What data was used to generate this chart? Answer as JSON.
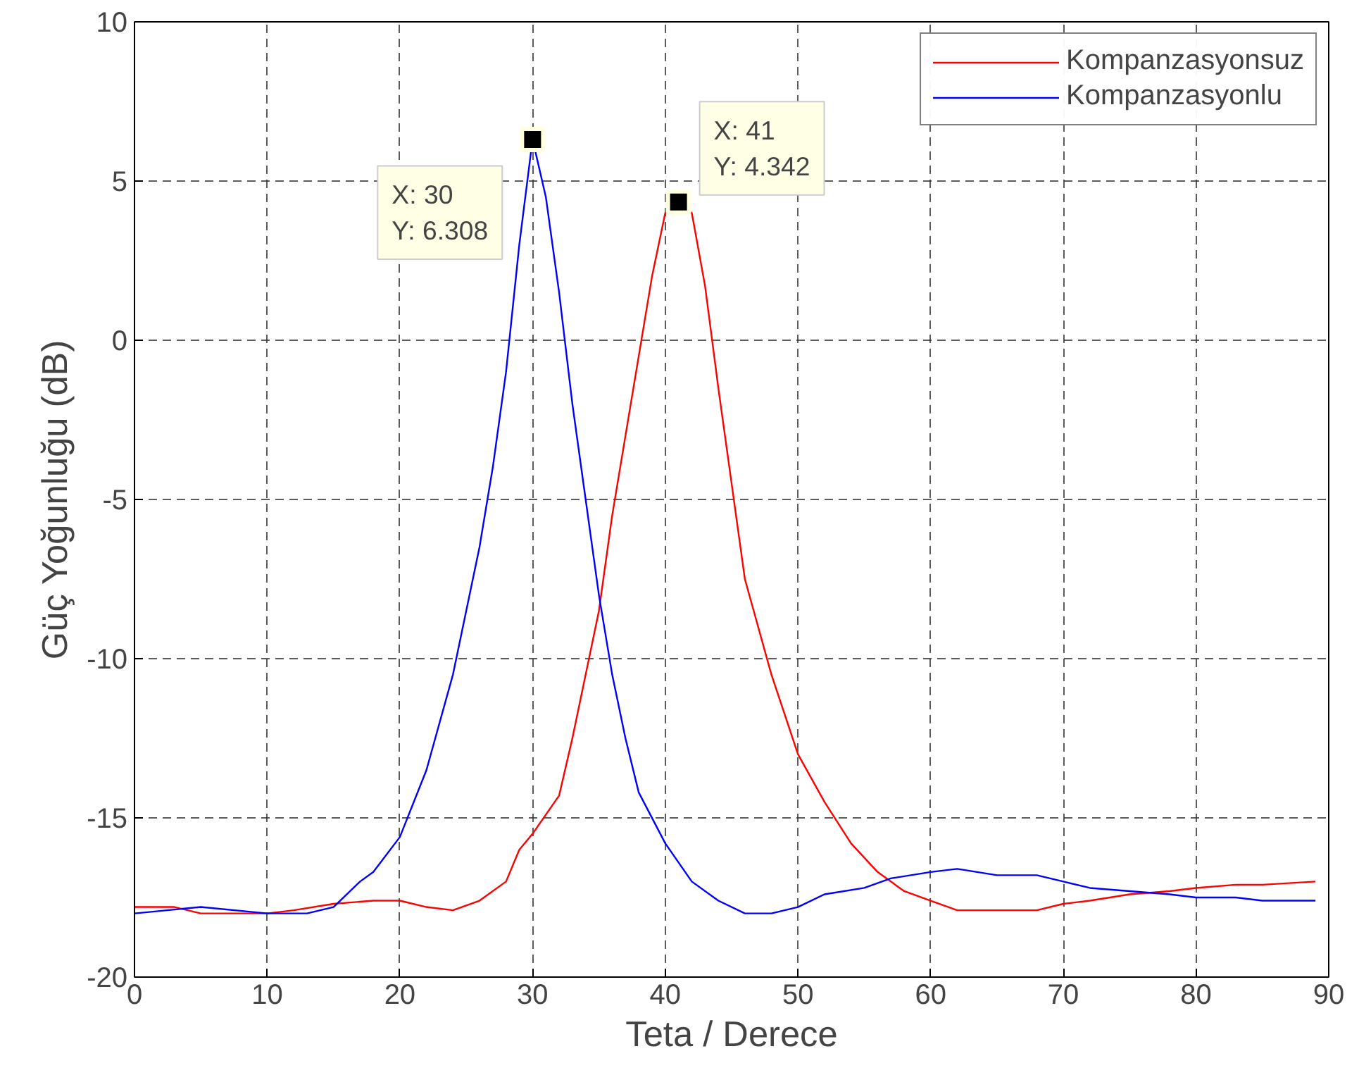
{
  "chart_data": {
    "type": "line",
    "xlabel": "Teta / Derece",
    "ylabel": "Güç Yoğunluğu (dB)",
    "xlim": [
      0,
      90
    ],
    "ylim": [
      -20,
      10
    ],
    "xticks": [
      0,
      10,
      20,
      30,
      40,
      50,
      60,
      70,
      80,
      90
    ],
    "yticks": [
      -20,
      -15,
      -10,
      -5,
      0,
      5,
      10
    ],
    "grid": true,
    "legend": "top right",
    "line_style": "solid",
    "marker": "none",
    "series": [
      {
        "name": "Kompanzasyonsuz",
        "color": "#ff0000",
        "x": [
          0,
          3,
          5,
          10,
          12,
          15,
          18,
          20,
          22,
          24,
          26,
          28,
          29,
          30,
          32,
          33,
          35,
          36,
          37,
          38,
          39,
          40,
          41,
          42,
          43,
          44,
          45,
          46,
          48,
          50,
          52,
          54,
          56,
          58,
          60,
          62,
          65,
          68,
          70,
          72,
          75,
          78,
          80,
          83,
          85,
          89
        ],
        "values": [
          -17.8,
          -17.8,
          -18,
          -18,
          -17.9,
          -17.7,
          -17.6,
          -17.6,
          -17.8,
          -17.9,
          -17.6,
          -17,
          -16,
          -15.5,
          -14.3,
          -12.5,
          -8.5,
          -5.5,
          -3,
          -0.5,
          2,
          4,
          4.342,
          4,
          1.7,
          -1.5,
          -4.5,
          -7.5,
          -10.5,
          -13,
          -14.5,
          -15.8,
          -16.7,
          -17.3,
          -17.6,
          -17.9,
          -17.9,
          -17.9,
          -17.7,
          -17.6,
          -17.4,
          -17.3,
          -17.2,
          -17.1,
          -17.1,
          -17
        ]
      },
      {
        "name": "Kompanzasyonlu",
        "color": "#0000ff",
        "x": [
          0,
          5,
          10,
          13,
          15,
          17,
          18,
          20,
          22,
          24,
          26,
          27,
          28,
          29,
          30,
          31,
          32,
          33,
          34,
          35,
          36,
          37,
          38,
          40,
          42,
          44,
          46,
          48,
          50,
          52,
          55,
          57,
          60,
          62,
          65,
          68,
          70,
          72,
          75,
          78,
          80,
          83,
          85,
          89
        ],
        "values": [
          -18,
          -17.8,
          -18,
          -18,
          -17.8,
          -17,
          -16.7,
          -15.6,
          -13.5,
          -10.5,
          -6.5,
          -4,
          -1,
          3,
          6.308,
          4.5,
          1.5,
          -2,
          -5,
          -8,
          -10.5,
          -12.5,
          -14.2,
          -15.8,
          -17,
          -17.6,
          -18,
          -18,
          -17.8,
          -17.4,
          -17.2,
          -16.9,
          -16.7,
          -16.6,
          -16.8,
          -16.8,
          -17,
          -17.2,
          -17.3,
          -17.4,
          -17.5,
          -17.5,
          -17.6,
          -17.6
        ]
      }
    ],
    "annotations": [
      {
        "text": "X: 30\nY: 6.308",
        "x": 30,
        "y": 6.308
      },
      {
        "text": "X: 41\nY: 4.342",
        "x": 41,
        "y": 4.342
      }
    ]
  }
}
